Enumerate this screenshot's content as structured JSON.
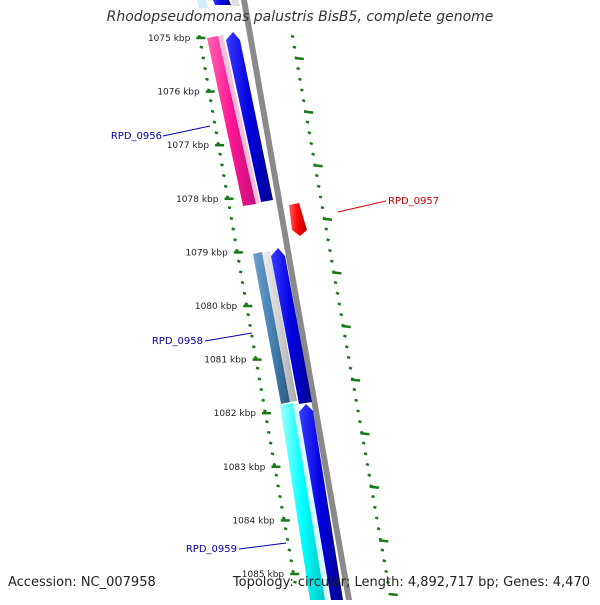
{
  "title": "Rhodopseudomonas palustris BisB5, complete genome",
  "accession": "Accession: NC_007958",
  "topology": "Topology: circular; Length: 4,892,717 bp; Genes: 4,470",
  "ticks": [
    {
      "label": "1075 kbp"
    },
    {
      "label": "1076 kbp"
    },
    {
      "label": "1077 kbp"
    },
    {
      "label": "1078 kbp"
    },
    {
      "label": "1079 kbp"
    },
    {
      "label": "1080 kbp"
    },
    {
      "label": "1081 kbp"
    },
    {
      "label": "1082 kbp"
    },
    {
      "label": "1083 kbp"
    },
    {
      "label": "1084 kbp"
    },
    {
      "label": "1085 kbp"
    }
  ],
  "genes": [
    {
      "label": "RPD_0956",
      "color": "#0000aa"
    },
    {
      "label": "RPD_0957",
      "color": "#cc0000"
    },
    {
      "label": "RPD_0958",
      "color": "#0000aa"
    },
    {
      "label": "RPD_0959",
      "color": "#0000aa"
    }
  ],
  "colors": {
    "tick": "#1a7a1a",
    "backbone": "#888888",
    "cds": "#0000e0",
    "pink_feature": "#ff1493",
    "steel_feature": "#4682b4",
    "cyan_feature": "#00ffff",
    "red_feature": "#ff0000"
  }
}
